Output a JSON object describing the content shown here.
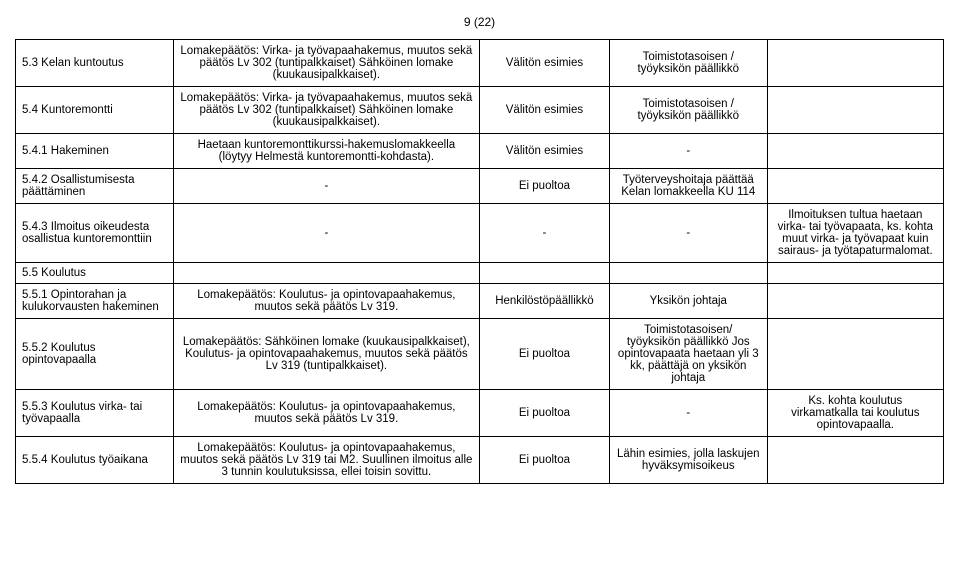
{
  "page_number": "9 (22)",
  "rows": [
    {
      "c1": "5.3  Kelan kuntoutus",
      "c2": "Lomakepäätös:\nVirka- ja työvapaahakemus, muutos sekä päätös Lv 302 (tuntipalkkaiset) Sähköinen lomake (kuukausipalkkaiset).",
      "c3": "Välitön esimies",
      "c4": "Toimistotasoisen / työyksikön päällikkö",
      "c5": ""
    },
    {
      "c1": "5.4  Kuntoremontti",
      "c2": "Lomakepäätös:\nVirka- ja työvapaahakemus, muutos sekä päätös Lv 302 (tuntipalkkaiset) Sähköinen lomake (kuukausipalkkaiset).",
      "c3": "Välitön esimies",
      "c4": "Toimistotasoisen / työyksikön päällikkö",
      "c5": ""
    },
    {
      "c1": "5.4.1  Hakeminen",
      "c2": "Haetaan kuntoremonttikurssi-hakemuslomakkeella (löytyy Helmestä kuntoremontti-kohdasta).",
      "c3": "Välitön esimies",
      "c4": "-",
      "c5": ""
    },
    {
      "c1": "5.4.2  Osallistumisesta päättäminen",
      "c2": "-",
      "c3": "Ei puoltoa",
      "c4": "Työterveyshoitaja päättää Kelan lomakkeella KU 114",
      "c5": ""
    },
    {
      "c1": "5.4.3  Ilmoitus oikeudesta osallistua kuntoremonttiin",
      "c2": "-",
      "c3": "-",
      "c4": "-",
      "c5": "Ilmoituksen tultua haetaan virka- tai työvapaata, ks. kohta muut virka- ja työvapaat kuin sairaus- ja työtapaturmalomat."
    },
    {
      "c1": "5.5    Koulutus",
      "section": true
    },
    {
      "c1": "5.5.1  Opintorahan ja kulukorvausten hakeminen",
      "c2": "Lomakepäätös:\nKoulutus- ja opintovapaahakemus, muutos sekä päätös Lv 319.",
      "c3": "Henkilöstöpäällikkö",
      "c4": "Yksikön johtaja",
      "c5": ""
    },
    {
      "c1": "5.5.2  Koulutus opintovapaalla",
      "c2": "Lomakepäätös:\nSähköinen lomake (kuukausipalkkaiset), Koulutus- ja opintovapaahakemus, muutos sekä päätös Lv 319 (tuntipalkkaiset).",
      "c3": "Ei puoltoa",
      "c4": "Toimistotasoisen/ työyksikön päällikkö Jos opintovapaata haetaan yli 3 kk, päättäjä on yksikön johtaja",
      "c5": ""
    },
    {
      "c1": "5.5.3  Koulutus virka- tai työvapaalla",
      "c2": "Lomakepäätös:\nKoulutus- ja opintovapaahakemus, muutos sekä päätös Lv 319.",
      "c3": "Ei puoltoa",
      "c4": "-",
      "c5": "Ks. kohta koulutus virkamatkalla tai koulutus opintovapaalla."
    },
    {
      "c1": "5.5.4  Koulutus työaikana",
      "c2": "Lomakepäätös:\nKoulutus- ja opintovapaahakemus, muutos sekä päätös Lv 319 tai M2. Suullinen ilmoitus alle 3 tunnin koulutuksissa, ellei toisin sovittu.",
      "c3": "Ei puoltoa",
      "c4": "Lähin esimies, jolla laskujen hyväksymisoikeus",
      "c5": ""
    }
  ]
}
